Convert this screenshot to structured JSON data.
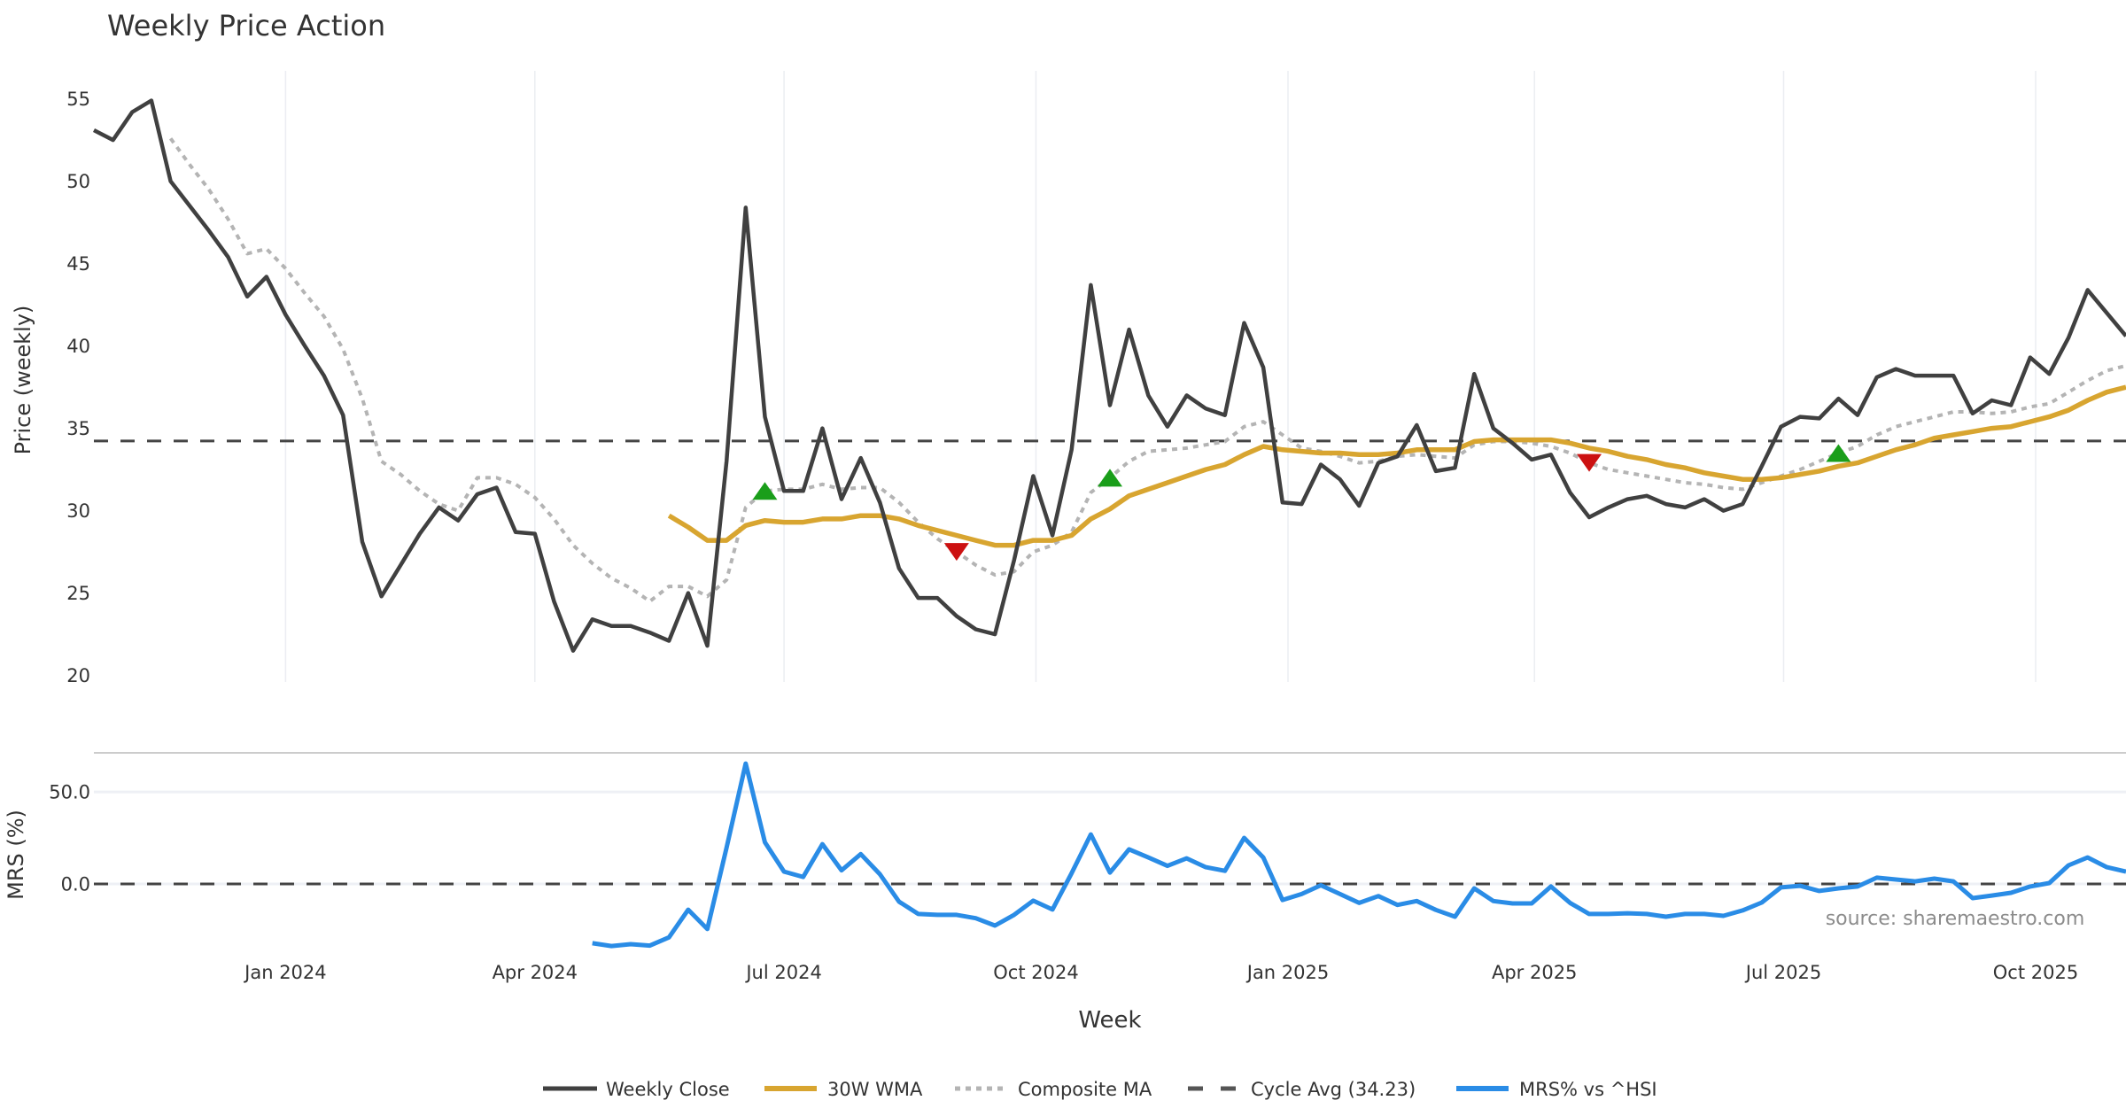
{
  "chart_data": {
    "type": "line",
    "title": "Weekly Price Action",
    "xlabel": "Week",
    "xlim": [
      "2023-10-23",
      "2025-11-03"
    ],
    "x_ticks": [
      {
        "date": "2024-01-01",
        "label": "Jan 2024"
      },
      {
        "date": "2024-04-01",
        "label": "Apr 2024"
      },
      {
        "date": "2024-07-01",
        "label": "Jul 2024"
      },
      {
        "date": "2024-10-01",
        "label": "Oct 2024"
      },
      {
        "date": "2025-01-01",
        "label": "Jan 2025"
      },
      {
        "date": "2025-04-01",
        "label": "Apr 2025"
      },
      {
        "date": "2025-07-01",
        "label": "Jul 2025"
      },
      {
        "date": "2025-10-01",
        "label": "Oct 2025"
      }
    ],
    "x": [
      "2023-10-23",
      "2023-10-30",
      "2023-11-06",
      "2023-11-13",
      "2023-11-20",
      "2023-11-27",
      "2023-12-04",
      "2023-12-11",
      "2023-12-18",
      "2023-12-25",
      "2024-01-01",
      "2024-01-08",
      "2024-01-15",
      "2024-01-22",
      "2024-01-29",
      "2024-02-05",
      "2024-02-12",
      "2024-02-19",
      "2024-02-26",
      "2024-03-04",
      "2024-03-11",
      "2024-03-18",
      "2024-03-25",
      "2024-04-01",
      "2024-04-08",
      "2024-04-15",
      "2024-04-22",
      "2024-04-29",
      "2024-05-06",
      "2024-05-13",
      "2024-05-20",
      "2024-05-27",
      "2024-06-03",
      "2024-06-10",
      "2024-06-17",
      "2024-06-24",
      "2024-07-01",
      "2024-07-08",
      "2024-07-15",
      "2024-07-22",
      "2024-07-29",
      "2024-08-05",
      "2024-08-12",
      "2024-08-19",
      "2024-08-26",
      "2024-09-02",
      "2024-09-09",
      "2024-09-16",
      "2024-09-23",
      "2024-09-30",
      "2024-10-07",
      "2024-10-14",
      "2024-10-21",
      "2024-10-28",
      "2024-11-04",
      "2024-11-11",
      "2024-11-18",
      "2024-11-25",
      "2024-12-02",
      "2024-12-09",
      "2024-12-16",
      "2024-12-23",
      "2024-12-30",
      "2025-01-06",
      "2025-01-13",
      "2025-01-20",
      "2025-01-27",
      "2025-02-03",
      "2025-02-10",
      "2025-02-17",
      "2025-02-24",
      "2025-03-03",
      "2025-03-10",
      "2025-03-17",
      "2025-03-24",
      "2025-03-31",
      "2025-04-07",
      "2025-04-14",
      "2025-04-21",
      "2025-04-28",
      "2025-05-05",
      "2025-05-12",
      "2025-05-19",
      "2025-05-26",
      "2025-06-02",
      "2025-06-09",
      "2025-06-16",
      "2025-06-23",
      "2025-06-30",
      "2025-07-07",
      "2025-07-14",
      "2025-07-21",
      "2025-07-28",
      "2025-08-04",
      "2025-08-11",
      "2025-08-18",
      "2025-08-25",
      "2025-09-01",
      "2025-09-08",
      "2025-09-15",
      "2025-09-22",
      "2025-09-29",
      "2025-10-06",
      "2025-10-13",
      "2025-10-20",
      "2025-10-27",
      "2025-11-03"
    ],
    "signal_colors": {
      "buy": "#1a9e1a",
      "sell": "#cc1111"
    },
    "panels": [
      {
        "id": "price",
        "ylabel": "Price (weekly)",
        "ylim": [
          19.6,
          56.7
        ],
        "y_ticks": [
          20,
          25,
          30,
          35,
          40,
          45,
          50,
          55
        ],
        "y_tick_labels": [
          "20",
          "25",
          "30",
          "35",
          "40",
          "45",
          "50",
          "55"
        ],
        "grid": "x",
        "gridlines": [],
        "hlines": [
          {
            "id": "cycle-avg",
            "name": "Cycle Avg (34.23)",
            "value": 34.23,
            "color": "#444444",
            "line_style": "dashed"
          }
        ],
        "series": [
          {
            "id": "composite-ma",
            "name": "Composite MA",
            "color": "#b4b4b4",
            "line_style": "dotted",
            "values": [
              null,
              null,
              null,
              null,
              52.6,
              51.0,
              49.5,
              47.7,
              45.6,
              45.9,
              44.7,
              43.2,
              41.8,
              39.8,
              36.8,
              33.0,
              32.2,
              31.2,
              30.4,
              30.0,
              32.0,
              32.0,
              31.6,
              30.8,
              29.5,
              27.9,
              26.8,
              25.9,
              25.3,
              24.5,
              25.4,
              25.4,
              24.8,
              25.8,
              30.2,
              31.2,
              31.3,
              31.3,
              31.6,
              31.3,
              31.4,
              31.4,
              30.5,
              29.3,
              28.3,
              27.5,
              26.7,
              26.1,
              26.3,
              27.5,
              27.9,
              28.7,
              31.1,
              32.0,
              33.0,
              33.6,
              33.7,
              33.8,
              34.0,
              34.2,
              35.1,
              35.4,
              34.6,
              33.8,
              33.6,
              33.3,
              32.9,
              33.0,
              33.3,
              33.4,
              33.3,
              33.2,
              34.0,
              34.2,
              34.2,
              34.1,
              33.9,
              33.5,
              32.9,
              32.5,
              32.3,
              32.1,
              31.9,
              31.7,
              31.6,
              31.4,
              31.3,
              31.7,
              32.1,
              32.5,
              33.0,
              33.5,
              33.9,
              34.6,
              35.1,
              35.4,
              35.7,
              36.0,
              36.0,
              35.9,
              36.0,
              36.3,
              36.5,
              37.2,
              37.9,
              38.5,
              38.8
            ]
          },
          {
            "id": "wma-30w",
            "name": "30W WMA",
            "color": "#d8a530",
            "line_style": "solid",
            "values": [
              null,
              null,
              null,
              null,
              null,
              null,
              null,
              null,
              null,
              null,
              null,
              null,
              null,
              null,
              null,
              null,
              null,
              null,
              null,
              null,
              null,
              null,
              null,
              null,
              null,
              null,
              null,
              null,
              null,
              null,
              29.7,
              29.0,
              28.2,
              28.2,
              29.1,
              29.4,
              29.3,
              29.3,
              29.5,
              29.5,
              29.7,
              29.7,
              29.5,
              29.1,
              28.8,
              28.5,
              28.2,
              27.9,
              27.9,
              28.2,
              28.2,
              28.5,
              29.5,
              30.1,
              30.9,
              31.3,
              31.7,
              32.1,
              32.5,
              32.8,
              33.4,
              33.9,
              33.7,
              33.6,
              33.5,
              33.5,
              33.4,
              33.4,
              33.5,
              33.7,
              33.7,
              33.7,
              34.2,
              34.3,
              34.3,
              34.3,
              34.3,
              34.1,
              33.8,
              33.6,
              33.3,
              33.1,
              32.8,
              32.6,
              32.3,
              32.1,
              31.9,
              31.9,
              32.0,
              32.2,
              32.4,
              32.7,
              32.9,
              33.3,
              33.7,
              34.0,
              34.4,
              34.6,
              34.8,
              35.0,
              35.1,
              35.4,
              35.7,
              36.1,
              36.7,
              37.2,
              37.5
            ]
          },
          {
            "id": "weekly-close",
            "name": "Weekly Close",
            "color": "#404040",
            "line_style": "solid",
            "values": [
              53.1,
              52.5,
              54.2,
              54.9,
              50.0,
              48.5,
              47.0,
              45.4,
              43.0,
              44.2,
              41.9,
              40.0,
              38.2,
              35.8,
              28.1,
              24.8,
              26.7,
              28.6,
              30.2,
              29.4,
              31.0,
              31.4,
              28.7,
              28.6,
              24.5,
              21.5,
              23.4,
              23.0,
              23.0,
              22.6,
              22.1,
              25.0,
              21.8,
              33.0,
              48.4,
              35.7,
              31.2,
              31.2,
              35.0,
              30.7,
              33.2,
              30.5,
              26.5,
              24.7,
              24.7,
              23.6,
              22.8,
              22.5,
              27.0,
              32.1,
              28.5,
              33.7,
              43.7,
              36.4,
              41.0,
              37.0,
              35.1,
              37.0,
              36.2,
              35.8,
              41.4,
              38.7,
              30.5,
              30.4,
              32.8,
              31.9,
              30.3,
              32.9,
              33.3,
              35.2,
              32.4,
              32.6,
              38.3,
              35.0,
              34.1,
              33.1,
              33.4,
              31.1,
              29.6,
              30.2,
              30.7,
              30.9,
              30.4,
              30.2,
              30.7,
              30.0,
              30.4,
              32.7,
              35.1,
              35.7,
              35.6,
              36.8,
              35.8,
              38.1,
              38.6,
              38.2,
              38.2,
              38.2,
              35.9,
              36.7,
              36.4,
              39.3,
              38.3,
              40.5,
              43.4,
              42.0,
              40.6
            ]
          }
        ],
        "signals": [
          {
            "date": "2024-06-24",
            "type": "buy",
            "value": 31.2
          },
          {
            "date": "2024-09-02",
            "type": "sell",
            "value": 27.5
          },
          {
            "date": "2024-10-28",
            "type": "buy",
            "value": 32.0
          },
          {
            "date": "2025-04-21",
            "type": "sell",
            "value": 32.9
          },
          {
            "date": "2025-07-21",
            "type": "buy",
            "value": 33.5
          }
        ]
      },
      {
        "id": "mrs",
        "ylabel": "MRS (%)",
        "ylim": [
          -35.6,
          71.2
        ],
        "y_ticks": [
          50,
          0
        ],
        "y_tick_labels": [
          "50.0",
          "0.0"
        ],
        "grid": "y",
        "gridlines": [
          50,
          0
        ],
        "hlines": [
          {
            "id": "mrs-zero",
            "name": "zero",
            "value": 0,
            "color": "#444444",
            "line_style": "dashed"
          }
        ],
        "series": [
          {
            "id": "mrs-vs-hsi",
            "name": "MRS% vs ^HSI",
            "color": "#2a8ce6",
            "line_style": "solid",
            "values": [
              null,
              null,
              null,
              null,
              null,
              null,
              null,
              null,
              null,
              null,
              null,
              null,
              null,
              null,
              null,
              null,
              null,
              null,
              null,
              null,
              null,
              null,
              null,
              null,
              null,
              null,
              -32.2,
              -33.7,
              -32.7,
              -33.5,
              -29.0,
              -14.0,
              -24.5,
              19.7,
              65.4,
              22.6,
              6.7,
              3.8,
              21.6,
              7.4,
              16.2,
              5.3,
              -9.6,
              -16.3,
              -16.8,
              -16.8,
              -18.6,
              -22.6,
              -16.8,
              -9.1,
              -13.9,
              5.8,
              26.9,
              6.2,
              18.8,
              14.4,
              9.8,
              13.9,
              9.1,
              7.1,
              25.0,
              14.4,
              -8.7,
              -5.5,
              -0.7,
              -5.5,
              -10.3,
              -6.6,
              -11.4,
              -9.3,
              -14.1,
              -17.8,
              -2.4,
              -9.3,
              -10.6,
              -10.6,
              -1.4,
              -10.3,
              -16.3,
              -16.3,
              -15.9,
              -16.3,
              -17.8,
              -16.3,
              -16.3,
              -17.3,
              -14.4,
              -10.1,
              -1.9,
              -1.0,
              -3.8,
              -2.4,
              -1.4,
              3.4,
              2.4,
              1.4,
              2.9,
              1.4,
              -7.7,
              -6.3,
              -4.8,
              -1.4,
              0.5,
              10.1,
              14.4,
              9.1,
              6.7
            ]
          }
        ]
      }
    ],
    "legend": {
      "position": "bottom-center",
      "entries": [
        {
          "label": "Weekly Close",
          "color": "#404040",
          "line_style": "solid"
        },
        {
          "label": "30W WMA",
          "color": "#d8a530",
          "line_style": "solid"
        },
        {
          "label": "Composite MA",
          "color": "#b4b4b4",
          "line_style": "dotted"
        },
        {
          "label": "Cycle Avg (34.23)",
          "color": "#555555",
          "line_style": "dashed"
        },
        {
          "label": "MRS% vs ^HSI",
          "color": "#2a8ce6",
          "line_style": "solid"
        }
      ]
    },
    "annotation": "source: sharemaestro.com"
  }
}
